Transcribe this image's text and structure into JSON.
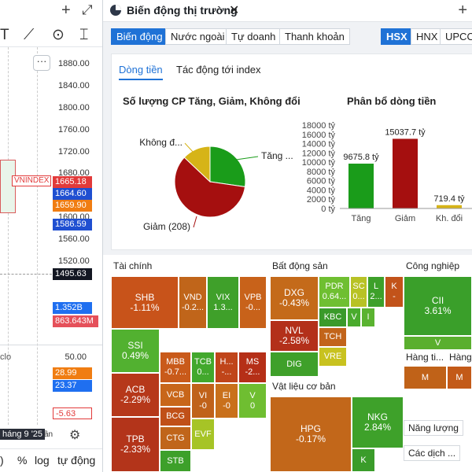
{
  "left_panel": {
    "top_icons": {
      "plus": "+",
      "expand": "⤢"
    },
    "tools": [
      {
        "name": "text-tool-icon",
        "glyph": "T"
      },
      {
        "name": "trend-tool-icon",
        "glyph": "⟋"
      },
      {
        "name": "target-tool-icon",
        "glyph": "⊙"
      },
      {
        "name": "cursor-text-icon",
        "glyph": "⌶"
      }
    ],
    "more_label": "···",
    "price_axis": [
      "1880.00",
      "1840.00",
      "1800.00",
      "1760.00",
      "1720.00",
      "1680.00",
      "1600.00",
      "1560.00",
      "1520.00"
    ],
    "symbol_tag": "VNINDEX",
    "price_tags": [
      {
        "value": "1665.18",
        "color": "#e23a3a"
      },
      {
        "value": "1664.60",
        "color": "#1f4fd1"
      },
      {
        "value": "1659.90",
        "color": "#f07d12"
      },
      {
        "value": "1586.59",
        "color": "#1f4fd1"
      }
    ],
    "crosshair_price": "1495.63",
    "volume_tags": [
      {
        "value": "1.352B",
        "color": "#1f6ff0"
      },
      {
        "value": "863.643M",
        "color": "#e5505a"
      }
    ],
    "sub_indicator": {
      "label": "clo",
      "axis_top": "50.00",
      "tags": [
        {
          "value": "28.99",
          "color": "#f07d12"
        },
        {
          "value": "23.37",
          "color": "#1f6ff0"
        }
      ],
      "neg_tag": "-5.63"
    },
    "date_label": "háng 9 '25",
    "an_label": "ần",
    "bottom_items": [
      ")",
      "%",
      "log",
      "tự động"
    ]
  },
  "panel": {
    "title": "Biến động thị trường",
    "close": "✕",
    "plus": "+",
    "tabs": [
      {
        "label": "Biến động",
        "active": true
      },
      {
        "label": "Nước ngoài",
        "active": false
      },
      {
        "label": "Tự doanh",
        "active": false
      },
      {
        "label": "Thanh khoản",
        "active": false
      }
    ],
    "exchange_tabs": [
      {
        "label": "HSX",
        "active": true
      },
      {
        "label": "HNX",
        "active": false
      },
      {
        "label": "UPCO",
        "active": false
      }
    ],
    "subtabs": [
      {
        "label": "Dòng tiền",
        "active": true
      },
      {
        "label": "Tác động tới index",
        "active": false
      }
    ],
    "pie_title": "Số lượng CP Tăng, Giảm, Không đổi",
    "bar_title": "Phân bổ dòng tiền"
  },
  "chart_data": [
    {
      "type": "pie",
      "title": "Số lượng CP Tăng, Giảm, Không đổi",
      "slices": [
        {
          "label": "Tăng ...",
          "value": 95,
          "color": "#1a9c1a"
        },
        {
          "label": "Giảm (208)",
          "value": 208,
          "color": "#a50f0f"
        },
        {
          "label": "Không đ...",
          "value": 45,
          "color": "#d6b417"
        }
      ]
    },
    {
      "type": "bar",
      "title": "Phân bổ dòng tiền",
      "categories": [
        "Tăng",
        "Giảm",
        "Kh. đổi"
      ],
      "values": [
        9675.8,
        15037.7,
        719.4
      ],
      "value_labels": [
        "9675.8 tỷ",
        "15037.7 tỷ",
        "719.4 tỷ"
      ],
      "colors": [
        "#1a9c1a",
        "#a50f0f",
        "#d6b417"
      ],
      "yticks": [
        "0 tỷ",
        "2000 tỷ",
        "4000 tỷ",
        "6000 tỷ",
        "8000 tỷ",
        "10000 tỷ",
        "12000 tỷ",
        "14000 tỷ",
        "16000 tỷ",
        "18000 tỷ"
      ],
      "ylim": [
        0,
        18000
      ]
    }
  ],
  "heatmap": {
    "sectors": [
      {
        "title": "Tài chính"
      },
      {
        "title": "Bất động sản"
      },
      {
        "title": "Công nghiệp"
      },
      {
        "title": "Vật liệu cơ bản"
      },
      {
        "title": "Hàng ti..."
      },
      {
        "title": "Hàng"
      },
      {
        "title": "Năng lượng"
      },
      {
        "title": "Các dịch ..."
      }
    ],
    "cells": [
      {
        "sym": "SHB",
        "pct": "-1.11%",
        "color": "#c8531a"
      },
      {
        "sym": "VND",
        "pct": "-0.2...",
        "color": "#c0651a"
      },
      {
        "sym": "VIX",
        "pct": "1.3...",
        "color": "#3fa02a"
      },
      {
        "sym": "VPB",
        "pct": "-0...",
        "color": "#c8621a"
      },
      {
        "sym": "SSI",
        "pct": "0.49%",
        "color": "#52b130"
      },
      {
        "sym": "MBB",
        "pct": "-0.7...",
        "color": "#c95a1a"
      },
      {
        "sym": "TCB",
        "pct": "0...",
        "color": "#42a82c"
      },
      {
        "sym": "H...",
        "pct": "-...",
        "color": "#c0451a"
      },
      {
        "sym": "MS",
        "pct": "-2...",
        "color": "#b52f17"
      },
      {
        "sym": "ACB",
        "pct": "-2.29%",
        "color": "#b6381a"
      },
      {
        "sym": "VCB",
        "pct": "",
        "color": "#c8661a"
      },
      {
        "sym": "BCG",
        "pct": "",
        "color": "#c05018"
      },
      {
        "sym": "VI",
        "pct": "-0",
        "color": "#c0621a"
      },
      {
        "sym": "EI",
        "pct": "-0",
        "color": "#c9701b"
      },
      {
        "sym": "V",
        "pct": "0",
        "color": "#6fbe31"
      },
      {
        "sym": "TPB",
        "pct": "-2.33%",
        "color": "#b3341a"
      },
      {
        "sym": "CTG",
        "pct": "",
        "color": "#c0651a"
      },
      {
        "sym": "EVF",
        "pct": "",
        "color": "#a6c426"
      },
      {
        "sym": "STB",
        "pct": "",
        "color": "#3da02a"
      },
      {
        "sym": "DXG",
        "pct": "-0.43%",
        "color": "#c46a1a"
      },
      {
        "sym": "PDR",
        "pct": "0.64...",
        "color": "#6fbf31"
      },
      {
        "sym": "SC",
        "pct": "0...",
        "color": "#b8c225"
      },
      {
        "sym": "L",
        "pct": "2...",
        "color": "#3da02a"
      },
      {
        "sym": "K",
        "pct": "-",
        "color": "#c2531a"
      },
      {
        "sym": "KBC",
        "pct": "",
        "color": "#3a9a2a"
      },
      {
        "sym": "V",
        "pct": "",
        "color": "#4aab2d"
      },
      {
        "sym": "I",
        "pct": "",
        "color": "#5ab330"
      },
      {
        "sym": "NVL",
        "pct": "-2.58%",
        "color": "#b3301a"
      },
      {
        "sym": "TCH",
        "pct": "",
        "color": "#c2641a"
      },
      {
        "sym": "VRE",
        "pct": "",
        "color": "#c8c21f"
      },
      {
        "sym": "DIG",
        "pct": "",
        "color": "#3fa02a"
      },
      {
        "sym": "CII",
        "pct": "3.61%",
        "color": "#3a9f2a"
      },
      {
        "sym": "V",
        "pct": "",
        "color": "#5aaf2e"
      },
      {
        "sym": "HPG",
        "pct": "-0.17%",
        "color": "#c2671a"
      },
      {
        "sym": "NKG",
        "pct": "2.84%",
        "color": "#3ea12a"
      },
      {
        "sym": "K",
        "pct": "",
        "color": "#3a9c2a"
      },
      {
        "sym": "M",
        "pct": "",
        "color": "#c06218"
      },
      {
        "sym": "M",
        "pct": "",
        "color": "#c35a18"
      }
    ]
  }
}
